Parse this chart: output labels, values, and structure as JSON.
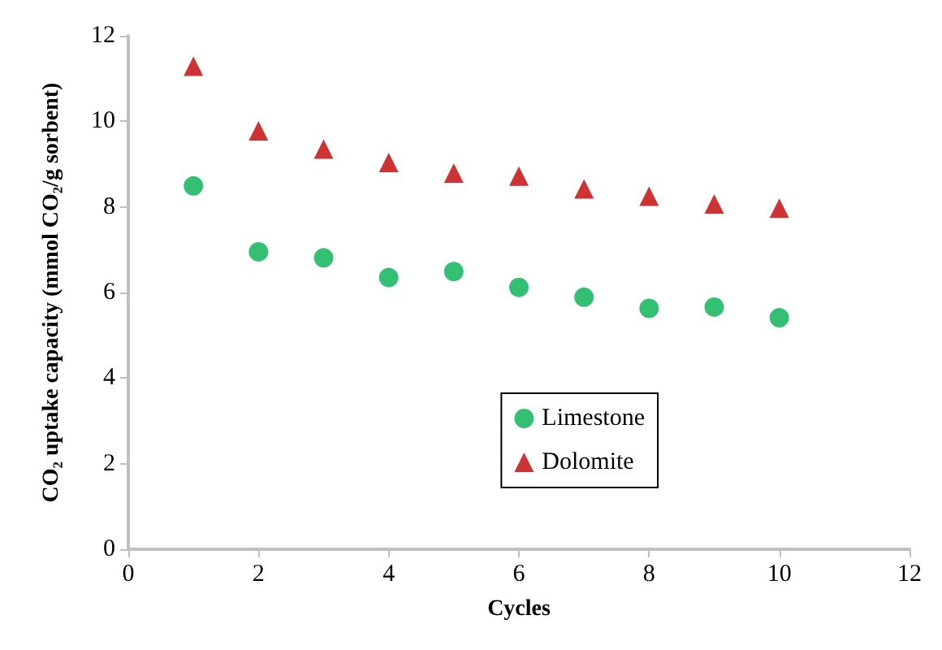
{
  "chart_data": {
    "type": "scatter",
    "xlabel": "Cycles",
    "ylabel": "CO₂ uptake capacity (mmol CO₂/g sorbent)",
    "x": [
      1,
      2,
      3,
      4,
      5,
      6,
      7,
      8,
      9,
      10
    ],
    "series": [
      {
        "name": "Limestone",
        "color": "#00b050",
        "marker": "circle",
        "values": [
          8.49,
          6.95,
          6.81,
          6.35,
          6.49,
          6.12,
          5.89,
          5.63,
          5.66,
          5.41
        ]
      },
      {
        "name": "Dolomite",
        "color": "#c00000",
        "marker": "triangle",
        "values": [
          11.29,
          9.78,
          9.35,
          9.04,
          8.79,
          8.72,
          8.42,
          8.25,
          8.07,
          7.97
        ]
      }
    ],
    "xlim": [
      0,
      12
    ],
    "xticks": [
      0,
      2,
      4,
      6,
      8,
      10,
      12
    ],
    "ylim": [
      0,
      12
    ],
    "yticks": [
      0,
      2,
      4,
      6,
      8,
      10,
      12
    ],
    "grid": false,
    "legend": "bottom right"
  }
}
